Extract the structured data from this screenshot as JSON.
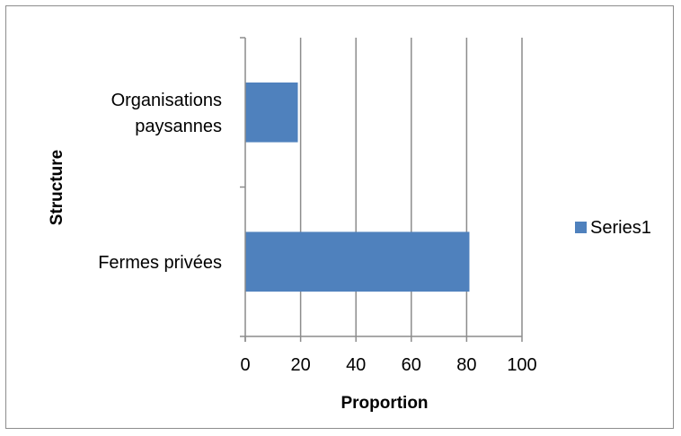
{
  "chart_data": {
    "type": "bar",
    "orientation": "horizontal",
    "categories": [
      "Organisations paysannes",
      "Fermes privées"
    ],
    "category_label_lines": [
      [
        "Organisations",
        "paysannes"
      ],
      [
        "Fermes privées"
      ]
    ],
    "series": [
      {
        "name": "Series1",
        "values": [
          19,
          81
        ],
        "color": "#4f81bd"
      }
    ],
    "xlabel": "Proportion",
    "ylabel": "Structure",
    "xlim": [
      0,
      100
    ],
    "xticks": [
      0,
      20,
      40,
      60,
      80,
      100
    ],
    "grid": "vertical major gridlines",
    "legend_position": "right",
    "gridline_color": "#8c8c8c"
  }
}
